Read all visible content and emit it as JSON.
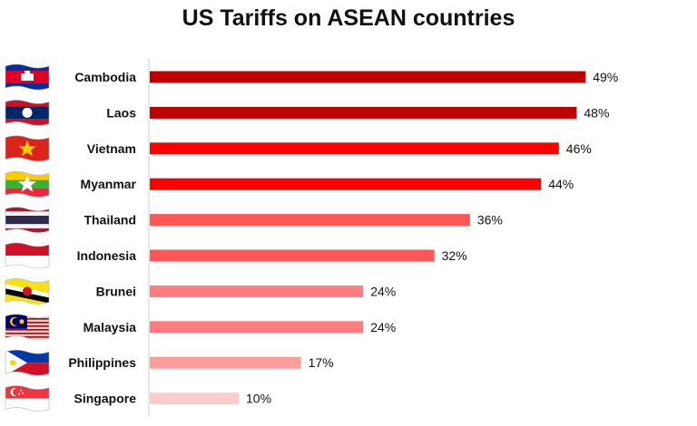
{
  "chart_data": {
    "type": "bar",
    "orientation": "horizontal",
    "title": "US Tariffs on ASEAN countries",
    "categories": [
      "Cambodia",
      "Laos",
      "Vietnam",
      "Myanmar",
      "Thailand",
      "Indonesia",
      "Brunei",
      "Malaysia",
      "Philippines",
      "Singapore"
    ],
    "values": [
      49,
      48,
      46,
      44,
      36,
      32,
      24,
      24,
      17,
      10
    ],
    "value_labels": [
      "49%",
      "48%",
      "46%",
      "44%",
      "36%",
      "32%",
      "24%",
      "24%",
      "17%",
      "10%"
    ],
    "xlim": [
      0,
      100
    ],
    "grid": false,
    "legend": "none",
    "bar_colors": [
      "#c00000",
      "#c00000",
      "#ff0000",
      "#ff0000",
      "#ff5757",
      "#ff5757",
      "#ff7c80",
      "#ff7c80",
      "#ff9d9d",
      "#ffcccc"
    ],
    "flag_icons": [
      "cambodia-flag-icon",
      "laos-flag-icon",
      "vietnam-flag-icon",
      "myanmar-flag-icon",
      "thailand-flag-icon",
      "indonesia-flag-icon",
      "brunei-flag-icon",
      "malaysia-flag-icon",
      "philippines-flag-icon",
      "singapore-flag-icon"
    ]
  }
}
